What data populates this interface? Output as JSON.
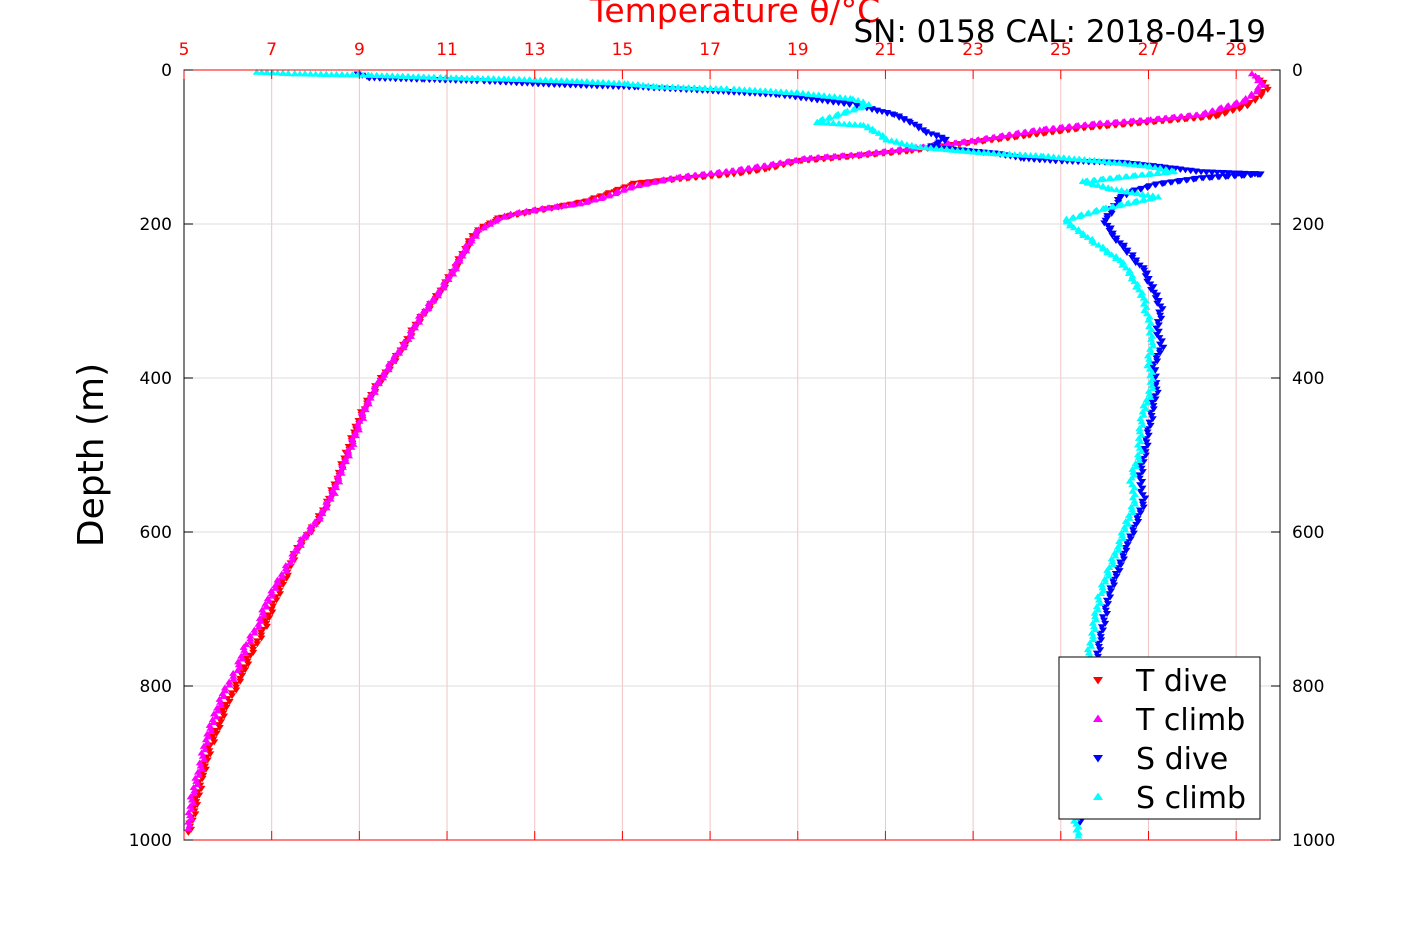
{
  "chart_data": {
    "type": "scatter",
    "title": "Temperature θ/°C",
    "subtitle": "SN: 0158  CAL: 2018-04-19",
    "xlabel": "Temperature θ/°C",
    "ylabel": "Depth (m)",
    "xlim": [
      5,
      30
    ],
    "ylim": [
      1000,
      0
    ],
    "x_ticks": [
      5,
      7,
      9,
      11,
      13,
      15,
      17,
      19,
      21,
      23,
      25,
      27,
      29
    ],
    "y_ticks": [
      0,
      200,
      400,
      600,
      800,
      1000
    ],
    "grid": true,
    "legend_position": "bottom-right",
    "colors": {
      "t_dive": "#ff0000",
      "t_climb": "#ff00ff",
      "s_dive": "#0000ff",
      "s_climb": "#00ffff",
      "axis": "#ff0000",
      "grid": "#d8d8d8"
    },
    "series": [
      {
        "name": "T dive",
        "marker": "triangle-down",
        "color": "#ff0000",
        "points": [
          [
            29.5,
            10
          ],
          [
            29.7,
            25
          ],
          [
            29.3,
            45
          ],
          [
            28.5,
            60
          ],
          [
            27.5,
            65
          ],
          [
            26.5,
            70
          ],
          [
            25.5,
            75
          ],
          [
            24.2,
            85
          ],
          [
            22.8,
            95
          ],
          [
            21.5,
            105
          ],
          [
            20.2,
            112
          ],
          [
            19,
            118
          ],
          [
            18.3,
            128
          ],
          [
            17.5,
            135
          ],
          [
            16.5,
            140
          ],
          [
            15.3,
            147
          ],
          [
            14.8,
            158
          ],
          [
            14.2,
            170
          ],
          [
            13.5,
            178
          ],
          [
            12.8,
            185
          ],
          [
            12.2,
            192
          ],
          [
            11.8,
            205
          ],
          [
            11.6,
            215
          ],
          [
            11.4,
            235
          ],
          [
            11.2,
            255
          ],
          [
            11.0,
            275
          ],
          [
            10.7,
            300
          ],
          [
            10.3,
            330
          ],
          [
            10.0,
            360
          ],
          [
            9.7,
            385
          ],
          [
            9.4,
            410
          ],
          [
            9.1,
            440
          ],
          [
            8.9,
            470
          ],
          [
            8.7,
            500
          ],
          [
            8.5,
            530
          ],
          [
            8.3,
            560
          ],
          [
            8.0,
            590
          ],
          [
            7.6,
            620
          ],
          [
            7.3,
            660
          ],
          [
            7.0,
            700
          ],
          [
            6.8,
            730
          ],
          [
            6.5,
            760
          ],
          [
            6.3,
            790
          ],
          [
            6.0,
            820
          ],
          [
            5.8,
            850
          ],
          [
            5.6,
            880
          ],
          [
            5.4,
            920
          ],
          [
            5.3,
            950
          ],
          [
            5.1,
            990
          ]
        ]
      },
      {
        "name": "T climb",
        "marker": "triangle-up",
        "color": "#ff00ff",
        "points": [
          [
            29.4,
            5
          ],
          [
            29.6,
            20
          ],
          [
            29.2,
            40
          ],
          [
            28.2,
            58
          ],
          [
            27.0,
            65
          ],
          [
            25.8,
            70
          ],
          [
            24.5,
            78
          ],
          [
            23.0,
            92
          ],
          [
            21.6,
            102
          ],
          [
            20.4,
            110
          ],
          [
            19.2,
            115
          ],
          [
            18.2,
            125
          ],
          [
            17.4,
            132
          ],
          [
            16.2,
            140
          ],
          [
            15.2,
            152
          ],
          [
            14.6,
            165
          ],
          [
            14.0,
            174
          ],
          [
            13.2,
            180
          ],
          [
            12.4,
            188
          ],
          [
            12.0,
            198
          ],
          [
            11.7,
            210
          ],
          [
            11.5,
            225
          ],
          [
            11.3,
            245
          ],
          [
            11.1,
            265
          ],
          [
            10.8,
            290
          ],
          [
            10.4,
            320
          ],
          [
            10.1,
            350
          ],
          [
            9.8,
            375
          ],
          [
            9.5,
            400
          ],
          [
            9.2,
            430
          ],
          [
            9.0,
            460
          ],
          [
            8.8,
            490
          ],
          [
            8.6,
            520
          ],
          [
            8.4,
            550
          ],
          [
            8.1,
            580
          ],
          [
            7.7,
            610
          ],
          [
            7.4,
            640
          ],
          [
            7.1,
            670
          ],
          [
            6.9,
            690
          ],
          [
            6.7,
            720
          ],
          [
            6.4,
            750
          ],
          [
            6.2,
            780
          ],
          [
            5.9,
            810
          ],
          [
            5.7,
            840
          ],
          [
            5.5,
            870
          ],
          [
            5.4,
            900
          ],
          [
            5.2,
            940
          ],
          [
            5.1,
            985
          ]
        ]
      },
      {
        "name": "S dive",
        "marker": "triangle-down",
        "color": "#0000ff",
        "points": [
          [
            9.0,
            5
          ],
          [
            9.2,
            10
          ],
          [
            10.5,
            12
          ],
          [
            11.8,
            14
          ],
          [
            13.2,
            18
          ],
          [
            15.4,
            22
          ],
          [
            16.8,
            26
          ],
          [
            18.6,
            32
          ],
          [
            20.3,
            45
          ],
          [
            21.2,
            58
          ],
          [
            21.6,
            68
          ],
          [
            21.9,
            80
          ],
          [
            22.4,
            90
          ],
          [
            22.0,
            100
          ],
          [
            23.5,
            108
          ],
          [
            24.2,
            115
          ],
          [
            25.0,
            118
          ],
          [
            26.4,
            120
          ],
          [
            27.2,
            125
          ],
          [
            28.2,
            132
          ],
          [
            29.6,
            135
          ],
          [
            28.2,
            140
          ],
          [
            27.2,
            148
          ],
          [
            26.6,
            158
          ],
          [
            26.3,
            168
          ],
          [
            26.2,
            180
          ],
          [
            26.0,
            195
          ],
          [
            26.2,
            215
          ],
          [
            26.6,
            240
          ],
          [
            26.9,
            260
          ],
          [
            27.1,
            285
          ],
          [
            27.3,
            310
          ],
          [
            27.2,
            335
          ],
          [
            27.3,
            360
          ],
          [
            27.1,
            385
          ],
          [
            27.2,
            410
          ],
          [
            27.1,
            440
          ],
          [
            27.0,
            470
          ],
          [
            26.9,
            500
          ],
          [
            26.8,
            530
          ],
          [
            26.9,
            560
          ],
          [
            26.7,
            590
          ],
          [
            26.5,
            620
          ],
          [
            26.3,
            650
          ],
          [
            26.1,
            680
          ],
          [
            26.0,
            710
          ],
          [
            25.9,
            740
          ],
          [
            25.8,
            770
          ],
          [
            25.7,
            800
          ],
          [
            25.6,
            830
          ],
          [
            25.6,
            860
          ],
          [
            25.5,
            900
          ],
          [
            25.5,
            940
          ],
          [
            25.4,
            980
          ]
        ]
      },
      {
        "name": "S climb",
        "marker": "triangle-up",
        "color": "#00ffff",
        "points": [
          [
            6.7,
            3
          ],
          [
            7.5,
            5
          ],
          [
            9.3,
            7
          ],
          [
            10.8,
            10
          ],
          [
            12.4,
            12
          ],
          [
            14.0,
            15
          ],
          [
            15.1,
            18
          ],
          [
            15.8,
            22
          ],
          [
            17.5,
            25
          ],
          [
            19.0,
            30
          ],
          [
            20.3,
            38
          ],
          [
            20.6,
            45
          ],
          [
            20.1,
            55
          ],
          [
            19.4,
            68
          ],
          [
            20.5,
            72
          ],
          [
            20.8,
            80
          ],
          [
            21.0,
            90
          ],
          [
            21.7,
            100
          ],
          [
            23.3,
            108
          ],
          [
            24.6,
            112
          ],
          [
            25.8,
            118
          ],
          [
            27.0,
            125
          ],
          [
            27.6,
            132
          ],
          [
            26.6,
            138
          ],
          [
            25.5,
            145
          ],
          [
            26.2,
            155
          ],
          [
            27.2,
            165
          ],
          [
            26.0,
            180
          ],
          [
            25.1,
            195
          ],
          [
            25.3,
            205
          ],
          [
            25.8,
            225
          ],
          [
            26.4,
            250
          ],
          [
            26.7,
            275
          ],
          [
            26.9,
            300
          ],
          [
            27.0,
            325
          ],
          [
            27.1,
            350
          ],
          [
            27.0,
            380
          ],
          [
            27.1,
            410
          ],
          [
            26.9,
            440
          ],
          [
            26.8,
            470
          ],
          [
            26.8,
            500
          ],
          [
            26.6,
            530
          ],
          [
            26.7,
            560
          ],
          [
            26.5,
            590
          ],
          [
            26.3,
            620
          ],
          [
            26.1,
            650
          ],
          [
            25.9,
            680
          ],
          [
            25.8,
            710
          ],
          [
            25.7,
            740
          ],
          [
            25.6,
            770
          ],
          [
            25.5,
            800
          ],
          [
            25.4,
            840
          ],
          [
            25.4,
            880
          ],
          [
            25.3,
            920
          ],
          [
            25.3,
            960
          ],
          [
            25.4,
            995
          ]
        ]
      }
    ]
  }
}
